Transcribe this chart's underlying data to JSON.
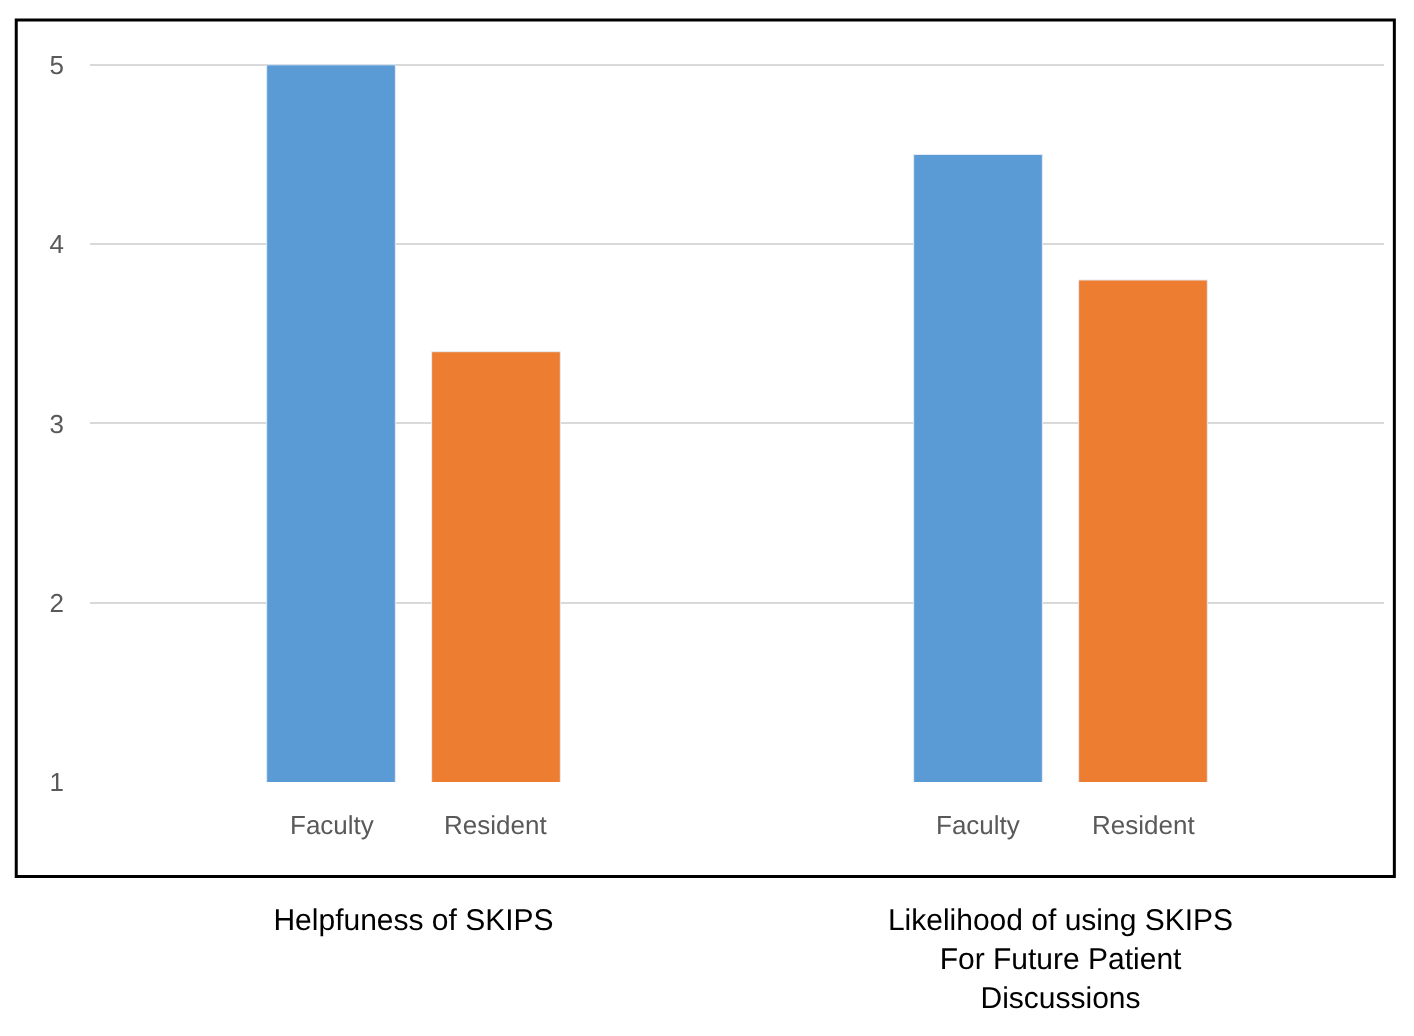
{
  "chart_data": {
    "type": "bar",
    "categories": [
      "Helpfuness of SKIPS",
      "Likelihood of using SKIPS For Future Patient Discussions"
    ],
    "series": [
      {
        "name": "Faculty",
        "color": "#5b9bd5",
        "values": [
          5.0,
          4.5
        ]
      },
      {
        "name": "Resident",
        "color": "#ed7d31",
        "values": [
          3.4,
          3.8
        ]
      }
    ],
    "ylim": [
      1,
      5.25
    ],
    "yticks": [
      1,
      2,
      3,
      4,
      5
    ],
    "grid": "y",
    "legend": false
  }
}
